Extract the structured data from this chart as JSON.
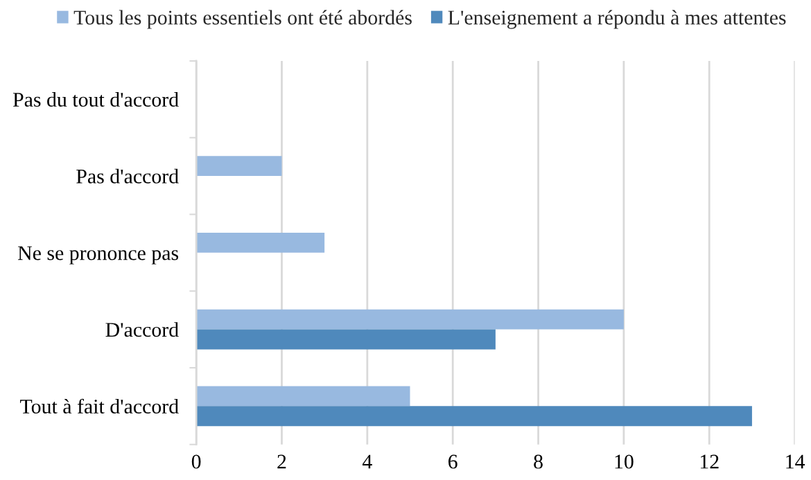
{
  "chart_data": {
    "type": "bar",
    "orientation": "horizontal",
    "categories": [
      "Pas du tout d'accord",
      "Pas d'accord",
      "Ne se prononce pas",
      "D'accord",
      "Tout à fait d'accord"
    ],
    "series": [
      {
        "name": "Tous les points essentiels ont été abordés",
        "color": "#98b9e0",
        "values": [
          0,
          2,
          3,
          10,
          5
        ]
      },
      {
        "name": "L'enseignement a répondu à mes attentes",
        "color": "#4f89bc",
        "values": [
          0,
          0,
          0,
          7,
          13
        ]
      }
    ],
    "xlim": [
      0,
      14
    ],
    "xticks": [
      0,
      2,
      4,
      6,
      8,
      10,
      12,
      14
    ],
    "grid": "x",
    "legend": "top"
  }
}
